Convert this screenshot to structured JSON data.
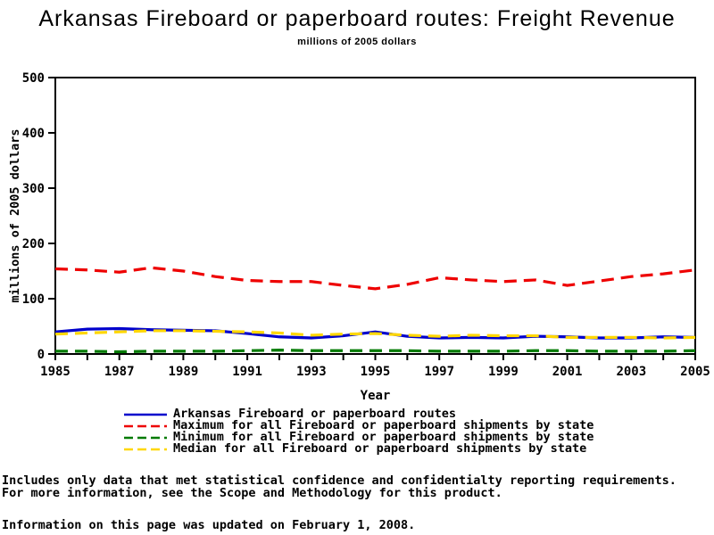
{
  "page": {
    "title": "Arkansas Fireboard or paperboard routes: Freight Revenue",
    "subtitle": "millions of 2005 dollars"
  },
  "chart_data": {
    "type": "line",
    "title": "Arkansas Fireboard or paperboard routes: Freight Revenue",
    "subtitle": "millions of 2005 dollars",
    "xlabel": "Year",
    "ylabel": "millions of 2005 dollars",
    "ylim": [
      0,
      500
    ],
    "yticks": [
      0,
      100,
      200,
      300,
      400,
      500
    ],
    "xticks_labeled": [
      1985,
      1987,
      1989,
      1991,
      1993,
      1995,
      1997,
      1999,
      2001,
      2003,
      2005
    ],
    "x": [
      1985,
      1986,
      1987,
      1988,
      1989,
      1990,
      1991,
      1992,
      1993,
      1994,
      1995,
      1996,
      1997,
      1998,
      1999,
      2000,
      2001,
      2002,
      2003,
      2004,
      2005
    ],
    "grid": false,
    "legend_position": "bottom",
    "frame_color": "#000000",
    "series": [
      {
        "name": "Arkansas Fireboard or paperboard routes",
        "color": "#0000cc",
        "style": "solid",
        "values": [
          40,
          45,
          46,
          44,
          43,
          42,
          37,
          31,
          29,
          33,
          40,
          32,
          29,
          30,
          29,
          32,
          31,
          29,
          29,
          31,
          30
        ]
      },
      {
        "name": "Maximum for all Fireboard or paperboard shipments by state",
        "color": "#ee0000",
        "style": "dashed",
        "values": [
          154,
          152,
          148,
          156,
          150,
          140,
          133,
          131,
          131,
          124,
          118,
          126,
          138,
          134,
          131,
          134,
          124,
          132,
          140,
          145,
          152
        ]
      },
      {
        "name": "Minimum for all Fireboard or paperboard shipments by state",
        "color": "#007a00",
        "style": "dashed",
        "values": [
          5,
          5,
          4,
          5,
          5,
          5,
          6,
          7,
          6,
          6,
          6,
          6,
          5,
          5,
          5,
          6,
          6,
          5,
          5,
          5,
          6
        ]
      },
      {
        "name": "Median for all Fireboard or paperboard shipments by state",
        "color": "#ffd700",
        "style": "dashed",
        "values": [
          36,
          38,
          40,
          42,
          42,
          41,
          40,
          38,
          34,
          36,
          37,
          34,
          32,
          34,
          33,
          33,
          30,
          30,
          30,
          29,
          30
        ]
      }
    ]
  },
  "footer": {
    "line1": "Includes only data that met statistical confidence and confidentialty reporting requirements.",
    "line2": "For more information, see the Scope and Methodology for this product.",
    "line3": "Information on this page was updated on February 1, 2008."
  }
}
